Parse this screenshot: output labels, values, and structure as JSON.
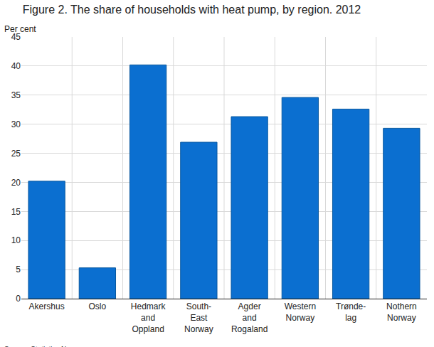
{
  "chart_data": {
    "type": "bar",
    "title": "Figure 2. The share of households with heat pump, by region. 2012",
    "y_label": "Per cent",
    "source": "Source: Statistics Norway.",
    "categories": [
      "Akershus",
      "Oslo",
      "Hedmark\nand\nOppland",
      "South-\nEast\nNorway",
      "Agder\nand\nRogaland",
      "Western\nNorway",
      "Trønde-\nlag",
      "Nothern\nNorway"
    ],
    "values": [
      20.2,
      5.3,
      40.2,
      26.9,
      31.3,
      34.6,
      32.6,
      29.3
    ],
    "color": "#0b6fd0",
    "ylim": [
      0,
      45
    ],
    "yticks": [
      0,
      5,
      10,
      15,
      20,
      25,
      30,
      35,
      40,
      45
    ],
    "grid": true
  }
}
